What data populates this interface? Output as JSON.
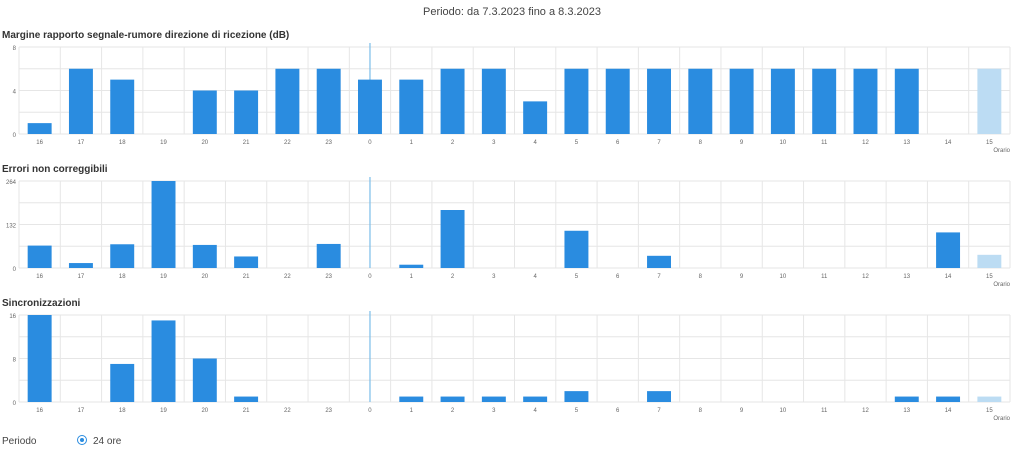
{
  "header": {
    "period_text": "Periodo: da 7.3.2023 fino a 8.3.2023"
  },
  "colors": {
    "bar": "#2a8ce0",
    "bar_current": "#bcdcf3",
    "grid": "#e6e6e6",
    "divider": "#7bbde9"
  },
  "chart_data": [
    {
      "type": "bar",
      "title": "Margine rapporto segnale-rumore direzione di ricezione (dB)",
      "categories": [
        "16",
        "17",
        "18",
        "19",
        "20",
        "21",
        "22",
        "23",
        "0",
        "1",
        "2",
        "3",
        "4",
        "5",
        "6",
        "7",
        "8",
        "9",
        "10",
        "11",
        "12",
        "13",
        "14",
        "15"
      ],
      "values": [
        1,
        6,
        5,
        0,
        4,
        4,
        6,
        6,
        5,
        5,
        6,
        6,
        3,
        6,
        6,
        6,
        6,
        6,
        6,
        6,
        6,
        6,
        0,
        6
      ],
      "yticks": [
        "0",
        "4",
        "8"
      ],
      "ylim": [
        0,
        8
      ],
      "xlabel": "Orario",
      "divider_after_category": "0",
      "current_category": "15"
    },
    {
      "type": "bar",
      "title": "Errori non correggibili",
      "categories": [
        "16",
        "17",
        "18",
        "19",
        "20",
        "21",
        "22",
        "23",
        "0",
        "1",
        "2",
        "3",
        "4",
        "5",
        "6",
        "7",
        "8",
        "9",
        "10",
        "11",
        "12",
        "13",
        "14",
        "15"
      ],
      "values": [
        68,
        15,
        72,
        264,
        70,
        35,
        0,
        73,
        0,
        10,
        176,
        0,
        0,
        113,
        0,
        37,
        0,
        0,
        0,
        0,
        0,
        0,
        108,
        40
      ],
      "yticks": [
        "0",
        "132",
        "264"
      ],
      "ylim": [
        0,
        264
      ],
      "xlabel": "Orario",
      "divider_after_category": "0",
      "current_category": "15"
    },
    {
      "type": "bar",
      "title": "Sincronizzazioni",
      "categories": [
        "16",
        "17",
        "18",
        "19",
        "20",
        "21",
        "22",
        "23",
        "0",
        "1",
        "2",
        "3",
        "4",
        "5",
        "6",
        "7",
        "8",
        "9",
        "10",
        "11",
        "12",
        "13",
        "14",
        "15"
      ],
      "values": [
        16,
        0,
        7,
        15,
        8,
        1,
        0,
        0,
        0,
        1,
        1,
        1,
        1,
        2,
        0,
        2,
        0,
        0,
        0,
        0,
        0,
        1,
        1,
        1
      ],
      "yticks": [
        "0",
        "8",
        "16"
      ],
      "ylim": [
        0,
        16
      ],
      "xlabel": "Orario",
      "divider_after_category": "0",
      "current_category": "15"
    }
  ],
  "period_selector": {
    "label": "Periodo",
    "option_label": "24 ore",
    "selected": true
  }
}
